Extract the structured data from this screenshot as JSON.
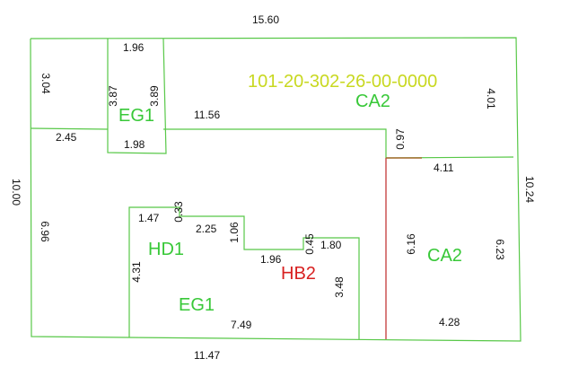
{
  "colors": {
    "boundary": "#58c848",
    "zone_label": "#38c838",
    "parcel_id": "#c8d820",
    "highlight_label": "#d82020",
    "highlight_line": "#c84848",
    "dimension_text": "#111111"
  },
  "parcel_id": "101-20-302-26-00-0000",
  "zones": {
    "eg1_top": "EG1",
    "ca2_top": "CA2",
    "hd1": "HD1",
    "hb2": "HB2",
    "eg1_bottom": "EG1",
    "ca2_right": "CA2"
  },
  "dimensions": {
    "top_total": "15.60",
    "bottom_total": "11.47",
    "left_total": "10.00",
    "right_total": "10.24",
    "top_left_side": "3.04",
    "top_left_bottom": "2.45",
    "eg1_top_width": "1.96",
    "eg1_bottom_width": "1.98",
    "eg1_left_height": "3.87",
    "eg1_right_height": "3.89",
    "upper_mid_width": "11.56",
    "upper_right_height": "4.01",
    "notch_height": "0.97",
    "ca2_top_width": "4.11",
    "ca2_left_height": "6.16",
    "ca2_right_height": "6.23",
    "ca2_bottom_width": "4.28",
    "lower_left_height": "6.96",
    "inner_top_left": "1.47",
    "inner_step1_height": "0.33",
    "inner_step_width": "2.25",
    "inner_step2_height": "1.06",
    "inner_step3_width": "1.96",
    "inner_step4_height": "0.45",
    "inner_right_top": "1.80",
    "inner_right_height": "3.48",
    "inner_left_height": "4.31",
    "inner_bottom_width": "7.49"
  }
}
